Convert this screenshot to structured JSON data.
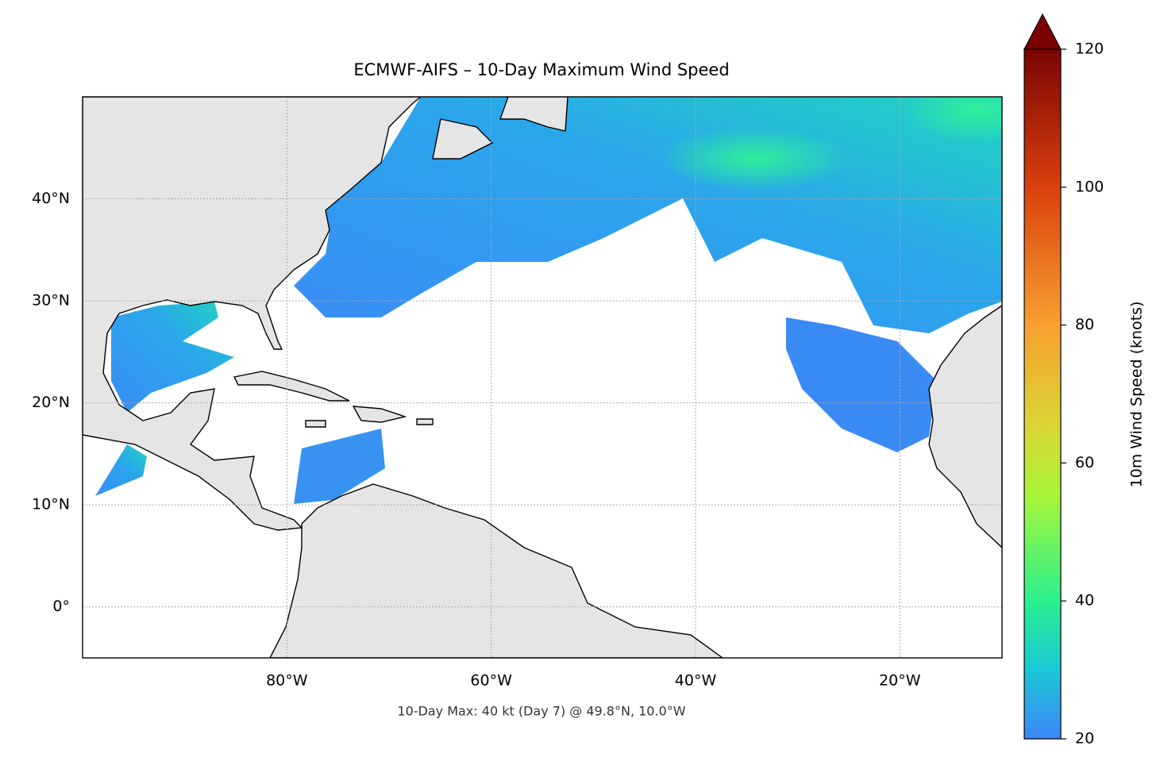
{
  "chart_data": {
    "type": "map",
    "title": "ECMWF-AIFS – 10-Day Maximum Wind Speed",
    "xlim": [
      -100,
      -10
    ],
    "ylim": [
      -5,
      50
    ],
    "xticks": [
      {
        "value": -80,
        "label": "80°W"
      },
      {
        "value": -60,
        "label": "60°W"
      },
      {
        "value": -40,
        "label": "40°W"
      },
      {
        "value": -20,
        "label": "20°W"
      }
    ],
    "yticks": [
      {
        "value": 0,
        "label": "0°"
      },
      {
        "value": 10,
        "label": "10°N"
      },
      {
        "value": 20,
        "label": "20°N"
      },
      {
        "value": 30,
        "label": "30°N"
      },
      {
        "value": 40,
        "label": "40°N"
      }
    ],
    "grid": true,
    "colorbar": {
      "label": "10m Wind Speed (knots)",
      "lim": [
        20,
        120
      ],
      "ticks": [
        20,
        40,
        60,
        80,
        100,
        120
      ],
      "extend": "max"
    },
    "annotation": "10-Day Max: 40 kt (Day 7) @ 49.8°N, 10.0°W"
  }
}
